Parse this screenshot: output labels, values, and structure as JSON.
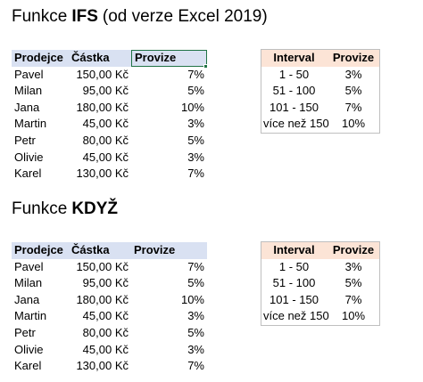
{
  "sections": [
    {
      "title": {
        "prefix": "Funkce",
        "bold": "IFS",
        "suffix": "(od verze Excel 2019)"
      },
      "table": {
        "headers": [
          "Prodejce",
          "Částka",
          "Provize"
        ],
        "rows": [
          [
            "Pavel",
            "150,00 Kč",
            "7%"
          ],
          [
            "Milan",
            "95,00 Kč",
            "5%"
          ],
          [
            "Jana",
            "180,00 Kč",
            "10%"
          ],
          [
            "Martin",
            "45,00 Kč",
            "3%"
          ],
          [
            "Petr",
            "80,00 Kč",
            "5%"
          ],
          [
            "Olivie",
            "45,00 Kč",
            "3%"
          ],
          [
            "Karel",
            "130,00 Kč",
            "7%"
          ]
        ]
      },
      "interval_table": {
        "headers": [
          "Interval",
          "Provize"
        ],
        "rows": [
          [
            "1 - 50",
            "3%"
          ],
          [
            "51 - 100",
            "5%"
          ],
          [
            "101 - 150",
            "7%"
          ],
          [
            "více než 150",
            "10%"
          ]
        ]
      }
    },
    {
      "title": {
        "prefix": "Funkce",
        "bold": "KDYŽ"
      },
      "table": {
        "headers": [
          "Prodejce",
          "Částka",
          "Provize"
        ],
        "rows": [
          [
            "Pavel",
            "150,00 Kč",
            "7%"
          ],
          [
            "Milan",
            "95,00 Kč",
            "5%"
          ],
          [
            "Jana",
            "180,00 Kč",
            "10%"
          ],
          [
            "Martin",
            "45,00 Kč",
            "3%"
          ],
          [
            "Petr",
            "80,00 Kč",
            "5%"
          ],
          [
            "Olivie",
            "45,00 Kč",
            "3%"
          ],
          [
            "Karel",
            "130,00 Kč",
            "7%"
          ]
        ]
      },
      "interval_table": {
        "headers": [
          "Interval",
          "Provize"
        ],
        "rows": [
          [
            "1 - 50",
            "3%"
          ],
          [
            "51 - 100",
            "5%"
          ],
          [
            "101 - 150",
            "7%"
          ],
          [
            "více než 150",
            "10%"
          ]
        ]
      }
    }
  ]
}
